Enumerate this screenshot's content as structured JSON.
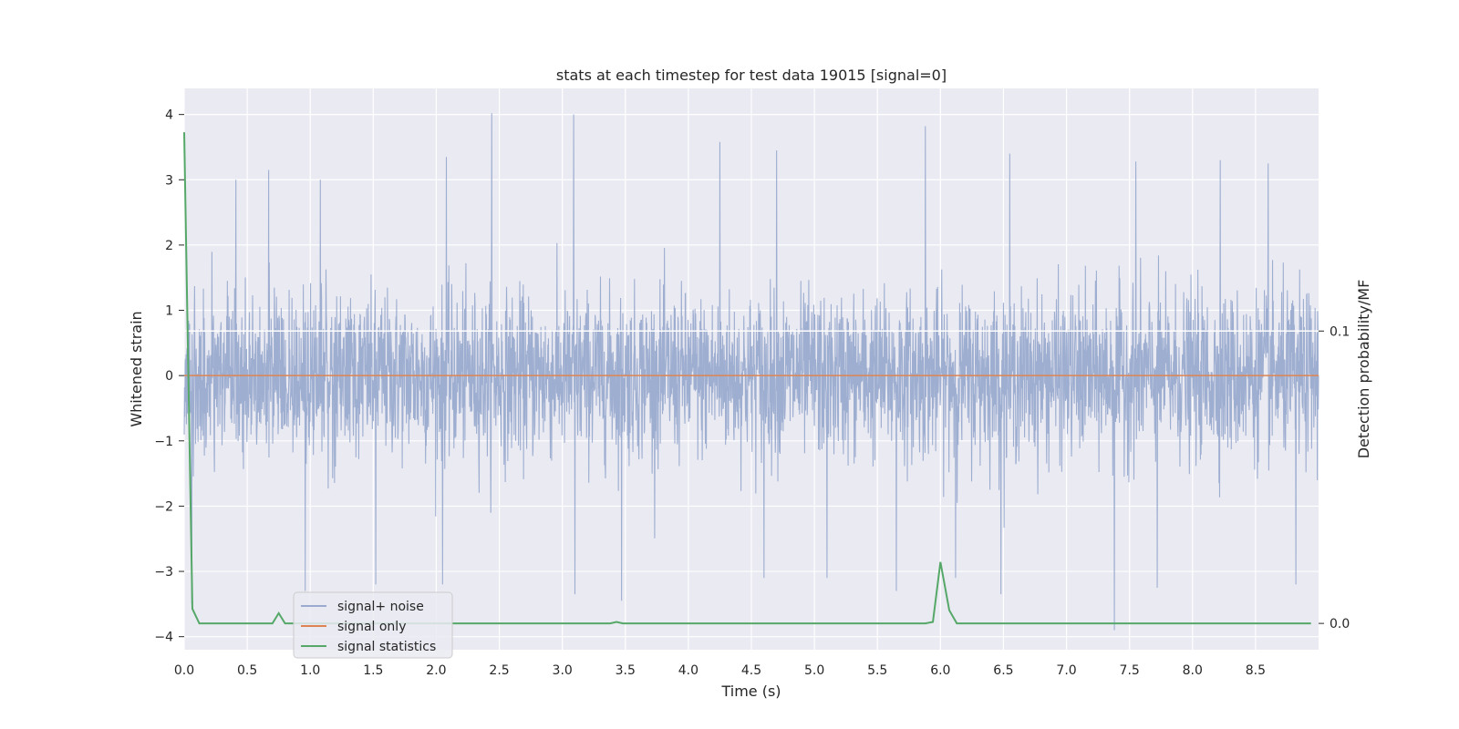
{
  "chart_data": {
    "type": "line",
    "title": "stats at each timestep for test data 19015 [signal=0]",
    "xlabel": "Time (s)",
    "ylabel": "Whitened strain",
    "y2label": "Detection probability/MF",
    "xlim": [
      0,
      9.0
    ],
    "ylim": [
      -4.2,
      4.4
    ],
    "y2lim": [
      -0.009,
      0.183
    ],
    "x_ticks": [
      0.0,
      0.5,
      1.0,
      1.5,
      2.0,
      2.5,
      3.0,
      3.5,
      4.0,
      4.5,
      5.0,
      5.5,
      6.0,
      6.5,
      7.0,
      7.5,
      8.0,
      8.5
    ],
    "x_tick_labels": [
      "0.0",
      "0.5",
      "1.0",
      "1.5",
      "2.0",
      "2.5",
      "3.0",
      "3.5",
      "4.0",
      "4.5",
      "5.0",
      "5.5",
      "6.0",
      "6.5",
      "7.0",
      "7.5",
      "8.0",
      "8.5"
    ],
    "y_ticks": [
      4,
      3,
      2,
      1,
      0,
      -1,
      -2,
      -3,
      -4
    ],
    "y_tick_labels": [
      "4",
      "3",
      "2",
      "1",
      "0",
      "−1",
      "−2",
      "−3",
      "−4"
    ],
    "y2_ticks": [
      0.1,
      0.0
    ],
    "y2_tick_labels": [
      "0.1",
      "0.0"
    ],
    "grid": true,
    "legend_position": "lower-left",
    "series": [
      {
        "name": "signal+ noise",
        "axis": "left",
        "color": "#9aabcf",
        "kind": "noise",
        "amplitude_sd": 0.62,
        "peaks": [
          {
            "x": 2.44,
            "y": 4.02
          },
          {
            "x": 3.09,
            "y": 4.0
          },
          {
            "x": 5.88,
            "y": 3.82
          },
          {
            "x": 4.25,
            "y": 3.58
          },
          {
            "x": 4.7,
            "y": 3.45
          },
          {
            "x": 6.55,
            "y": 3.4
          },
          {
            "x": 2.08,
            "y": 3.35
          },
          {
            "x": 8.22,
            "y": 3.3
          },
          {
            "x": 7.55,
            "y": 3.28
          },
          {
            "x": 8.6,
            "y": 3.25
          },
          {
            "x": 0.67,
            "y": 3.15
          },
          {
            "x": 0.41,
            "y": 3.0
          },
          {
            "x": 1.08,
            "y": 3.0
          },
          {
            "x": 7.38,
            "y": -3.9
          },
          {
            "x": 0.06,
            "y": -3.5
          },
          {
            "x": 3.47,
            "y": -3.45
          },
          {
            "x": 3.1,
            "y": -3.35
          },
          {
            "x": 6.48,
            "y": -3.35
          },
          {
            "x": 0.96,
            "y": -3.3
          },
          {
            "x": 5.65,
            "y": -3.3
          },
          {
            "x": 7.72,
            "y": -3.25
          },
          {
            "x": 8.82,
            "y": -3.2
          },
          {
            "x": 1.52,
            "y": -3.2
          },
          {
            "x": 2.05,
            "y": -3.2
          },
          {
            "x": 4.6,
            "y": -3.1
          },
          {
            "x": 5.1,
            "y": -3.1
          },
          {
            "x": 6.12,
            "y": -3.1
          }
        ]
      },
      {
        "name": "signal only",
        "axis": "left",
        "color": "#dd8452",
        "x": [
          0.0,
          9.0
        ],
        "y": [
          0,
          0
        ]
      },
      {
        "name": "signal statistics",
        "axis": "right",
        "color": "#55a868",
        "x": [
          0.0,
          0.065,
          0.12,
          0.7,
          0.75,
          0.8,
          3.38,
          3.43,
          3.48,
          5.88,
          5.94,
          6.0,
          6.07,
          6.13,
          8.94
        ],
        "y": [
          0.168,
          0.005,
          0.0,
          0.0,
          0.0035,
          0.0,
          0.0,
          0.0005,
          0.0,
          0.0,
          0.0005,
          0.021,
          0.0045,
          0.0,
          0.0
        ]
      }
    ],
    "hline": {
      "axis": "right",
      "y": 0.1,
      "color": "#ffffff"
    }
  }
}
